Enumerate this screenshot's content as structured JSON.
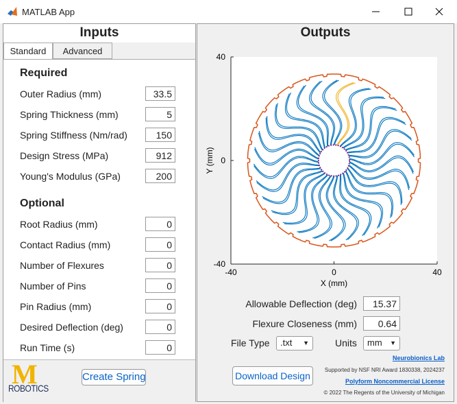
{
  "window": {
    "title": "MATLAB App"
  },
  "inputs": {
    "title": "Inputs",
    "tabs": [
      "Standard",
      "Advanced"
    ],
    "required_heading": "Required",
    "required": [
      {
        "label": "Outer Radius (mm)",
        "value": 33.5
      },
      {
        "label": "Spring Thickness (mm)",
        "value": 5
      },
      {
        "label": "Spring Stiffness (Nm/rad)",
        "value": 150
      },
      {
        "label": "Design Stress (MPa)",
        "value": 912
      },
      {
        "label": "Young's Modulus (GPa)",
        "value": 200
      }
    ],
    "optional_heading": "Optional",
    "optional": [
      {
        "label": "Root Radius (mm)",
        "value": 0
      },
      {
        "label": "Contact Radius (mm)",
        "value": 0
      },
      {
        "label": "Number of Flexures",
        "value": 0
      },
      {
        "label": "Number of Pins",
        "value": 0
      },
      {
        "label": "Pin Radius (mm)",
        "value": 0
      },
      {
        "label": "Desired Deflection (deg)",
        "value": 0
      },
      {
        "label": "Run Time (s)",
        "value": 0
      }
    ],
    "logo_letter": "M",
    "logo_text": "ROBOTICS",
    "button": "Create Spring"
  },
  "outputs": {
    "title": "Outputs",
    "plot": {
      "xlabel": "X (mm)",
      "ylabel": "Y (mm)",
      "xlim": [
        -40,
        40
      ],
      "ylim": [
        -40,
        40
      ],
      "xticks": [
        -40,
        0,
        40
      ],
      "yticks": [
        -40,
        0,
        40
      ]
    },
    "results": [
      {
        "label": "Allowable Deflection (deg)",
        "value": 15.37
      },
      {
        "label": "Flexure Closeness (mm)",
        "value": 0.64
      }
    ],
    "file_type_label": "File Type",
    "file_type": ".txt",
    "units_label": "Units",
    "units": "mm",
    "download": "Download Design",
    "lab_link": "Neurobionics Lab",
    "support": "Supported by NSF NRI Award 1830338, 2024237",
    "license_link": "Polyform Noncommercial License",
    "copyright": "© 2022 The Regents of the University of Michigan"
  }
}
